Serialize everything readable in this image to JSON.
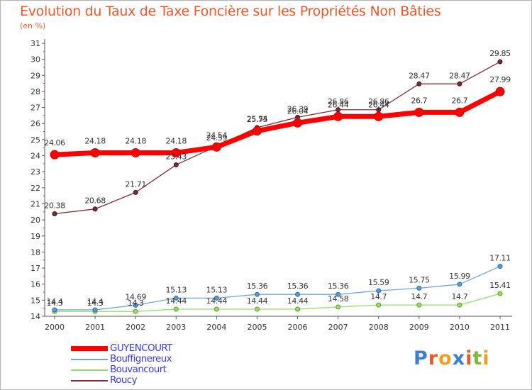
{
  "chart_data": {
    "type": "line",
    "title": "Evolution du Taux de Taxe Foncière sur les Propriétés Non Bâties",
    "subtitle": "(en %)",
    "xlabel": "",
    "ylabel": "",
    "x": [
      "2000",
      "2001",
      "2002",
      "2003",
      "2004",
      "2005",
      "2006",
      "2007",
      "2008",
      "2009",
      "2010",
      "2011"
    ],
    "ylim": [
      14,
      31
    ],
    "yticks": [
      "14",
      "15",
      "16",
      "17",
      "18",
      "19",
      "20",
      "21",
      "22",
      "23",
      "24",
      "25",
      "26",
      "27",
      "28",
      "29",
      "30",
      "31"
    ],
    "grid": false,
    "legend_position": "bottom-left",
    "series": [
      {
        "name": "GUYENCOURT",
        "color": "#ff0000",
        "values": [
          24.06,
          24.18,
          24.18,
          24.18,
          24.54,
          25.54,
          26.04,
          26.44,
          26.44,
          26.7,
          26.7,
          27.99
        ],
        "labels": [
          "24.06",
          "24.18",
          "24.18",
          "24.18",
          "24.54",
          "25.54",
          "26.04",
          "26.44",
          "26.44",
          "26.7",
          "26.7",
          "27.99"
        ]
      },
      {
        "name": "Bouffignereux",
        "color": "#6fa8d6",
        "values": [
          14.4,
          14.4,
          14.69,
          15.13,
          15.13,
          15.36,
          15.36,
          15.36,
          15.59,
          15.75,
          15.99,
          17.11
        ],
        "labels": [
          "14.4",
          "14.4",
          "14.69",
          "15.13",
          "15.13",
          "15.36",
          "15.36",
          "15.36",
          "15.59",
          "15.75",
          "15.99",
          "17.11"
        ]
      },
      {
        "name": "Bouvancourt",
        "color": "#99dd66",
        "values": [
          14.3,
          14.3,
          14.3,
          14.44,
          14.44,
          14.44,
          14.44,
          14.58,
          14.7,
          14.7,
          14.7,
          15.41
        ],
        "labels": [
          "14.3",
          "14.3",
          "14.3",
          "14.44",
          "14.44",
          "14.44",
          "14.44",
          "14.58",
          "14.7",
          "14.7",
          "14.7",
          "15.41"
        ]
      },
      {
        "name": "Roucy",
        "color": "#7a2e35",
        "values": [
          20.38,
          20.68,
          21.71,
          23.43,
          24.59,
          25.75,
          26.39,
          26.86,
          26.86,
          28.47,
          28.47,
          29.85
        ],
        "labels": [
          "20.38",
          "20.68",
          "21.71",
          "23.43",
          "24.59",
          "25.75",
          "26.39",
          "26.86",
          "26.86",
          "28.47",
          "28.47",
          "29.85"
        ]
      }
    ]
  },
  "brand": {
    "text": "Proxiti",
    "colors": [
      "#3b7fd4",
      "#e85a2c",
      "#f0a020",
      "#3b7fd4",
      "#e85a2c",
      "#7ab83a",
      "#f0a020"
    ]
  }
}
